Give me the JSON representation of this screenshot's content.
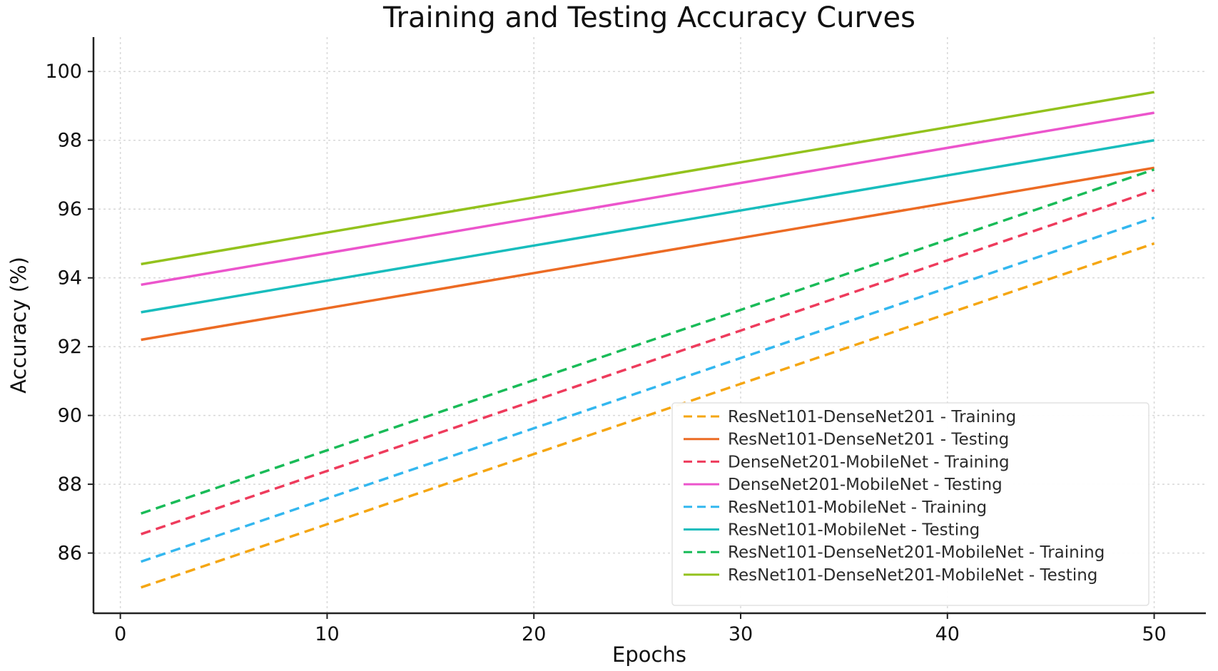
{
  "chart_data": {
    "type": "line",
    "title": "Training and Testing Accuracy Curves",
    "xlabel": "Epochs",
    "ylabel": "Accuracy (%)",
    "xlim": [
      -1.3,
      52.5
    ],
    "ylim": [
      84.25,
      101.0
    ],
    "xticks": [
      0,
      10,
      20,
      30,
      40,
      50
    ],
    "yticks": [
      86,
      88,
      90,
      92,
      94,
      96,
      98,
      100
    ],
    "grid": true,
    "legend_position": "lower-right",
    "series": [
      {
        "name": "ResNet101-DenseNet201 - Training",
        "color": "#f5a612",
        "style": "dashed",
        "x": [
          1,
          50
        ],
        "y": [
          85.0,
          95.0
        ]
      },
      {
        "name": "ResNet101-DenseNet201 - Testing",
        "color": "#ec6b24",
        "style": "solid",
        "x": [
          1,
          50
        ],
        "y": [
          92.2,
          97.2
        ]
      },
      {
        "name": "DenseNet201-MobileNet - Training",
        "color": "#ee3b5c",
        "style": "dashed",
        "x": [
          1,
          50
        ],
        "y": [
          86.55,
          96.55
        ]
      },
      {
        "name": "DenseNet201-MobileNet - Testing",
        "color": "#ec55cc",
        "style": "solid",
        "x": [
          1,
          50
        ],
        "y": [
          93.8,
          98.8
        ]
      },
      {
        "name": "ResNet101-MobileNet - Training",
        "color": "#33b7ef",
        "style": "dashed",
        "x": [
          1,
          50
        ],
        "y": [
          85.75,
          95.75
        ]
      },
      {
        "name": "ResNet101-MobileNet - Testing",
        "color": "#18bdbd",
        "style": "solid",
        "x": [
          1,
          50
        ],
        "y": [
          93.0,
          98.0
        ]
      },
      {
        "name": "ResNet101-DenseNet201-MobileNet - Training",
        "color": "#19bb58",
        "style": "dashed",
        "x": [
          1,
          50
        ],
        "y": [
          87.15,
          97.15
        ]
      },
      {
        "name": "ResNet101-DenseNet201-MobileNet - Testing",
        "color": "#93c21d",
        "style": "solid",
        "x": [
          1,
          50
        ],
        "y": [
          94.4,
          99.4
        ]
      }
    ]
  }
}
